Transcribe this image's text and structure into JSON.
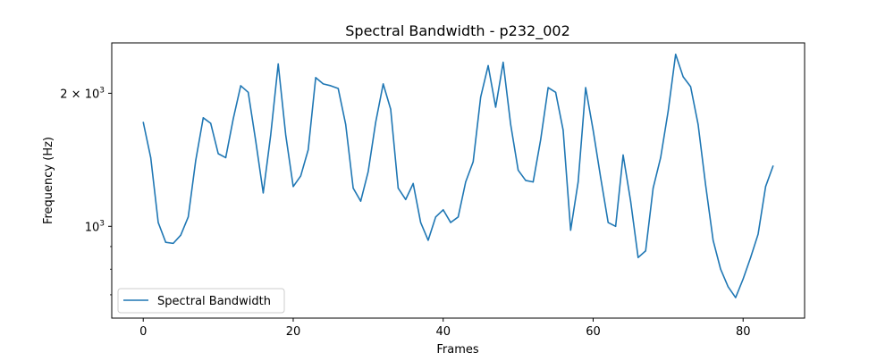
{
  "chart_data": {
    "type": "line",
    "title": "Spectral Bandwidth - p232_002",
    "xlabel": "Frames",
    "ylabel": "Frequency (Hz)",
    "x_scale": "linear",
    "y_scale": "log",
    "xlim": [
      -4.2,
      88.2
    ],
    "ylim": [
      620,
      2600
    ],
    "x_ticks": [
      {
        "value": 0,
        "label": "0"
      },
      {
        "value": 20,
        "label": "20"
      },
      {
        "value": 40,
        "label": "40"
      },
      {
        "value": 60,
        "label": "60"
      },
      {
        "value": 80,
        "label": "80"
      }
    ],
    "y_major_ticks": [
      {
        "value": 1000,
        "base": "10",
        "exp": "3",
        "mult": ""
      },
      {
        "value": 2000,
        "base": "10",
        "exp": "3",
        "mult": "2 × "
      }
    ],
    "y_minor_ticks": [
      700,
      800,
      900
    ],
    "grid": false,
    "legend": {
      "position": "lower-left",
      "entries": [
        "Spectral Bandwidth"
      ]
    },
    "series": [
      {
        "name": "Spectral Bandwidth",
        "color": "#1f77b4",
        "x": [
          0,
          1,
          2,
          3,
          4,
          5,
          6,
          7,
          8,
          9,
          10,
          11,
          12,
          13,
          14,
          15,
          16,
          17,
          18,
          19,
          20,
          21,
          22,
          23,
          24,
          25,
          26,
          27,
          28,
          29,
          30,
          31,
          32,
          33,
          34,
          35,
          36,
          37,
          38,
          39,
          40,
          41,
          42,
          43,
          44,
          45,
          46,
          47,
          48,
          49,
          50,
          51,
          52,
          53,
          54,
          55,
          56,
          57,
          58,
          59,
          60,
          61,
          62,
          63,
          64,
          65,
          66,
          67,
          68,
          69,
          70,
          71,
          72,
          73,
          74,
          75,
          76,
          77,
          78,
          79,
          80,
          81,
          82,
          83,
          84
        ],
        "values": [
          1720,
          1430,
          1020,
          920,
          915,
          955,
          1050,
          1410,
          1760,
          1710,
          1460,
          1430,
          1750,
          2080,
          2010,
          1560,
          1190,
          1610,
          2330,
          1610,
          1230,
          1300,
          1490,
          2170,
          2100,
          2080,
          2050,
          1700,
          1220,
          1140,
          1330,
          1720,
          2100,
          1840,
          1220,
          1150,
          1250,
          1020,
          930,
          1050,
          1090,
          1020,
          1050,
          1260,
          1400,
          1960,
          2310,
          1860,
          2350,
          1700,
          1340,
          1270,
          1260,
          1570,
          2060,
          2010,
          1650,
          980,
          1260,
          2060,
          1650,
          1290,
          1020,
          1000,
          1450,
          1140,
          850,
          880,
          1220,
          1430,
          1820,
          2450,
          2180,
          2070,
          1700,
          1240,
          930,
          800,
          730,
          690,
          760,
          850,
          960,
          1230,
          1370
        ]
      }
    ]
  }
}
